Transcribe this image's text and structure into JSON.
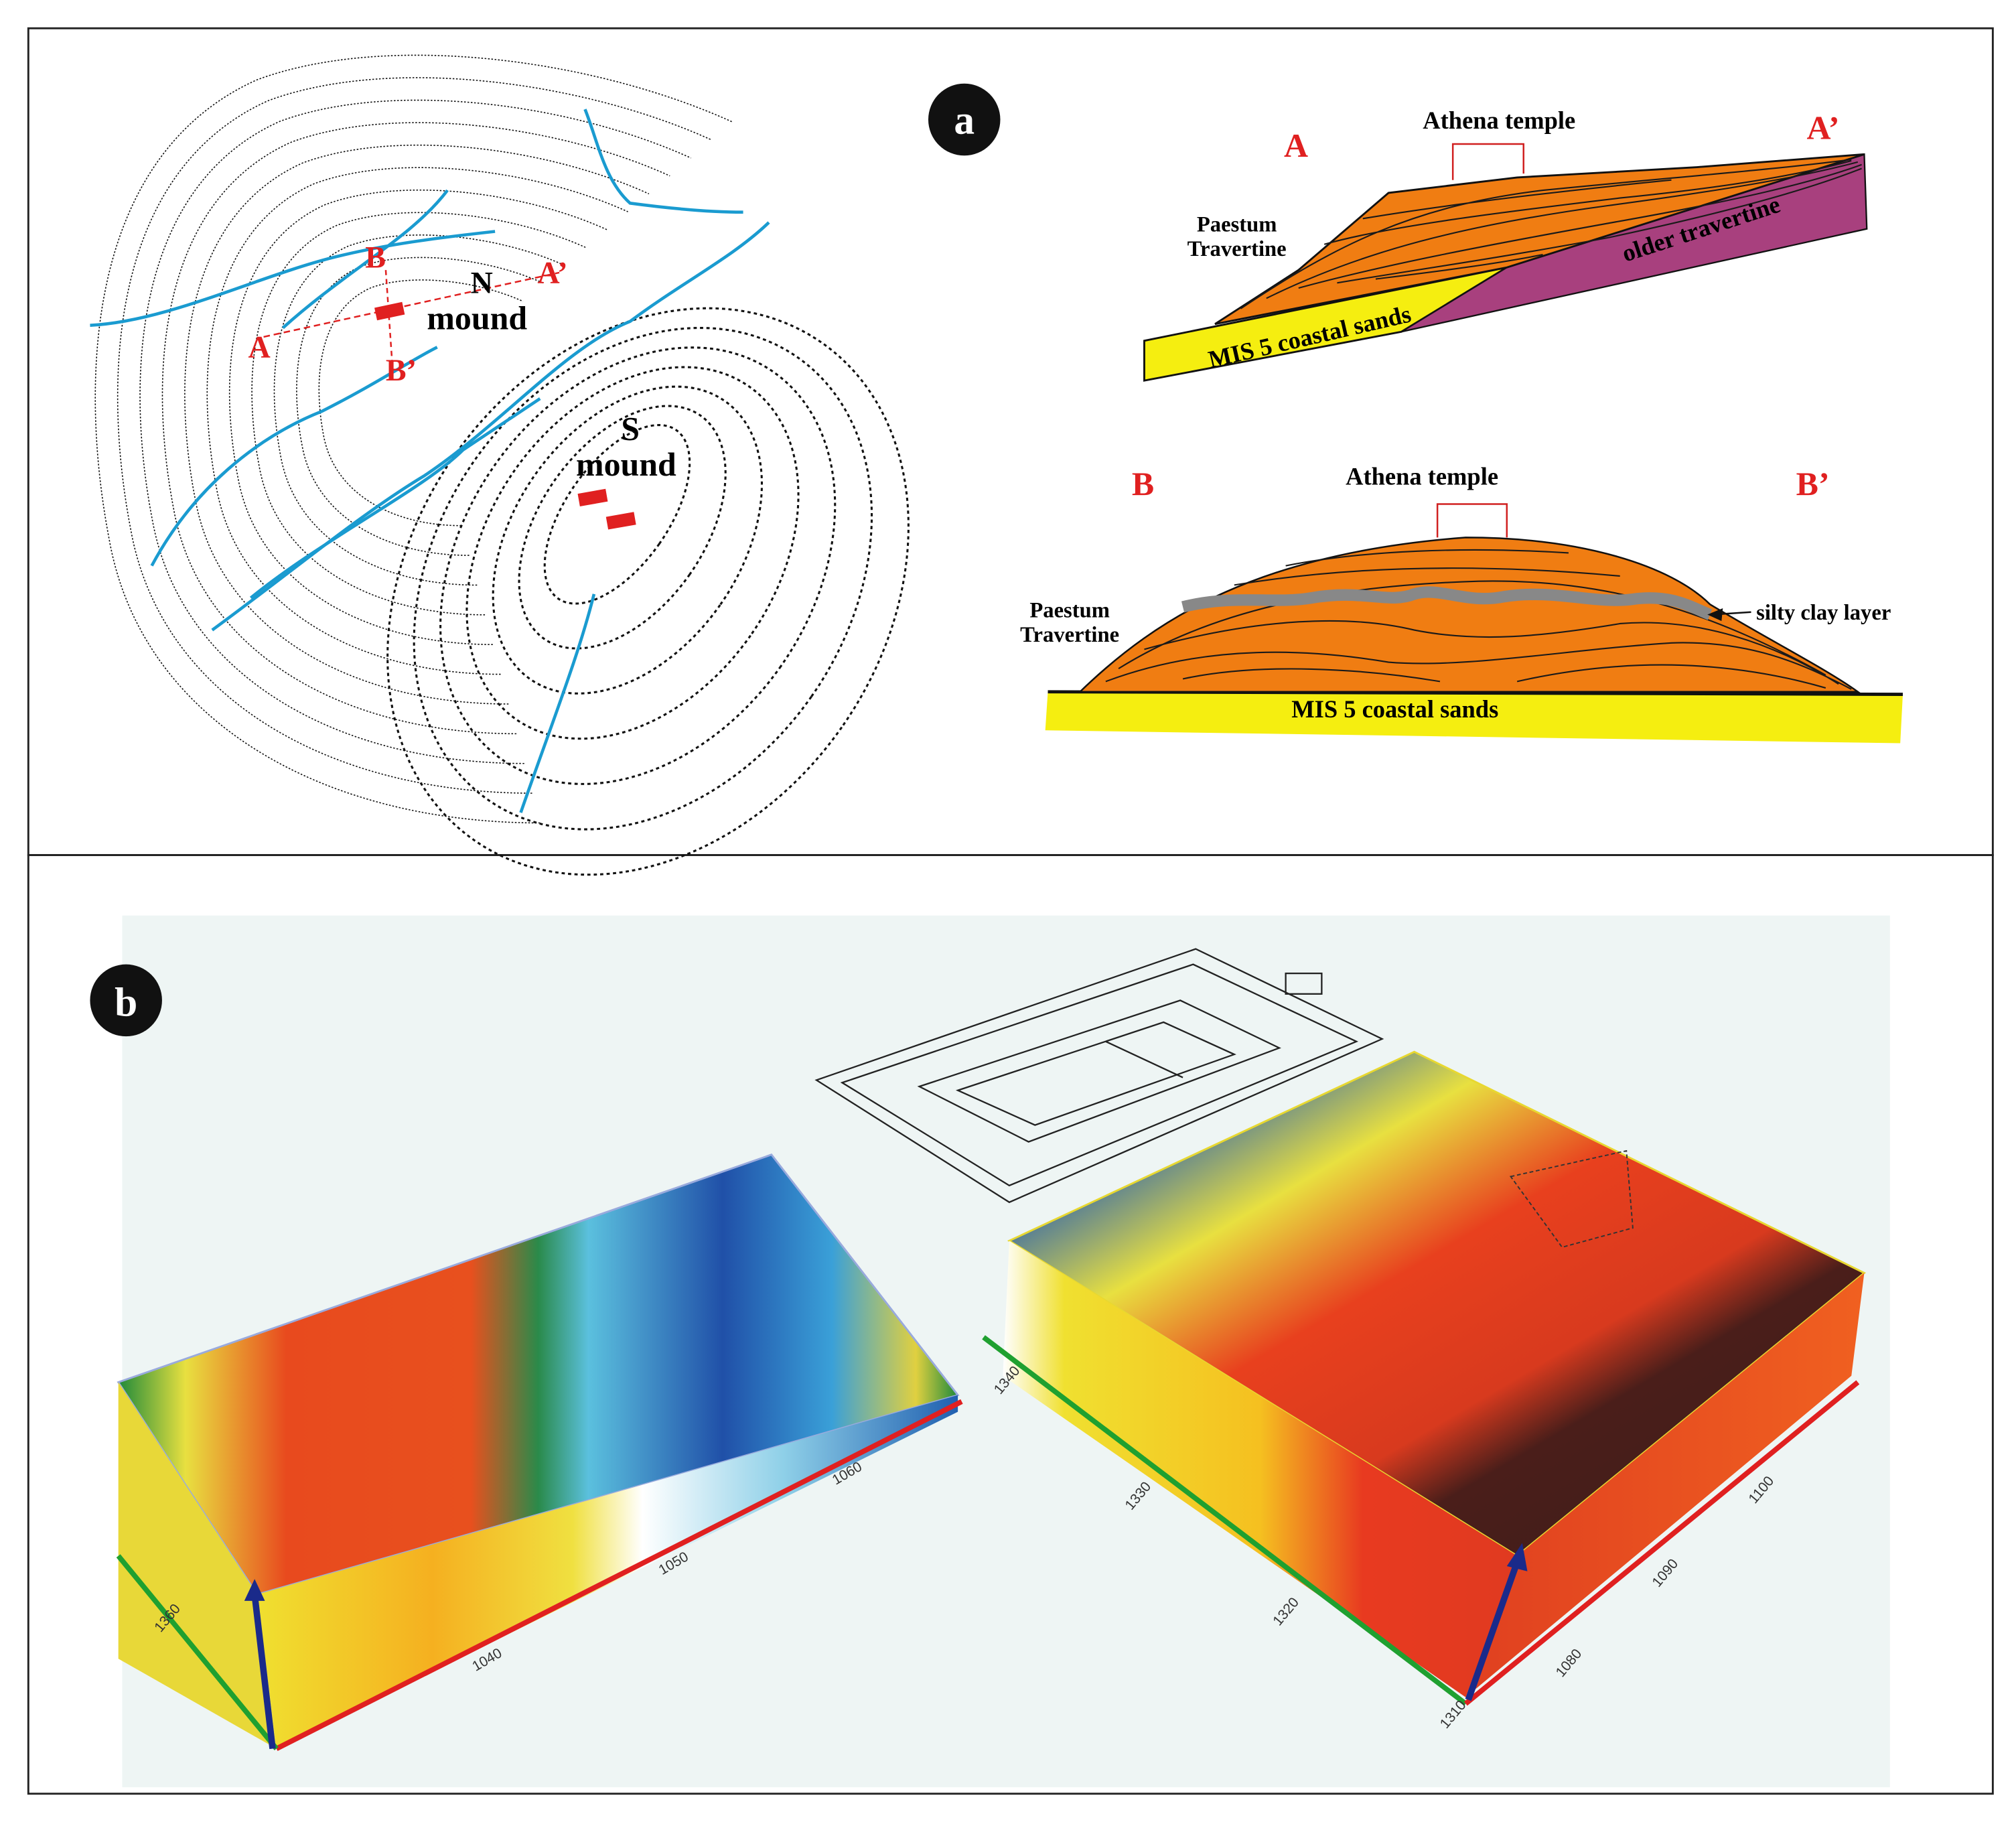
{
  "panel_a": {
    "label": "a",
    "map": {
      "point_a": "A",
      "point_a_prime": "A’",
      "point_b": "B",
      "point_b_prime": "B’",
      "n_letter": "N",
      "n_mound": "mound",
      "s_letter": "S",
      "s_mound": "mound"
    },
    "section_aa": {
      "start": "A",
      "end": "A’",
      "temple": "Athena temple",
      "unit_travertine": [
        "Paestum",
        "Travertine"
      ],
      "unit_older": "older travertine",
      "unit_sands": "MIS 5 coastal sands"
    },
    "section_bb": {
      "start": "B",
      "end": "B’",
      "temple": "Athena temple",
      "unit_travertine": [
        "Paestum",
        "Travertine"
      ],
      "unit_clay": "silty clay layer",
      "unit_sands": "MIS 5 coastal sands"
    }
  },
  "panel_b": {
    "label": "b",
    "left_block_ticks": [
      "1360",
      "1040",
      "1050",
      "1060"
    ],
    "right_block_ticks": [
      "1340",
      "1330",
      "1320",
      "1310",
      "1080",
      "1090",
      "1100"
    ]
  }
}
